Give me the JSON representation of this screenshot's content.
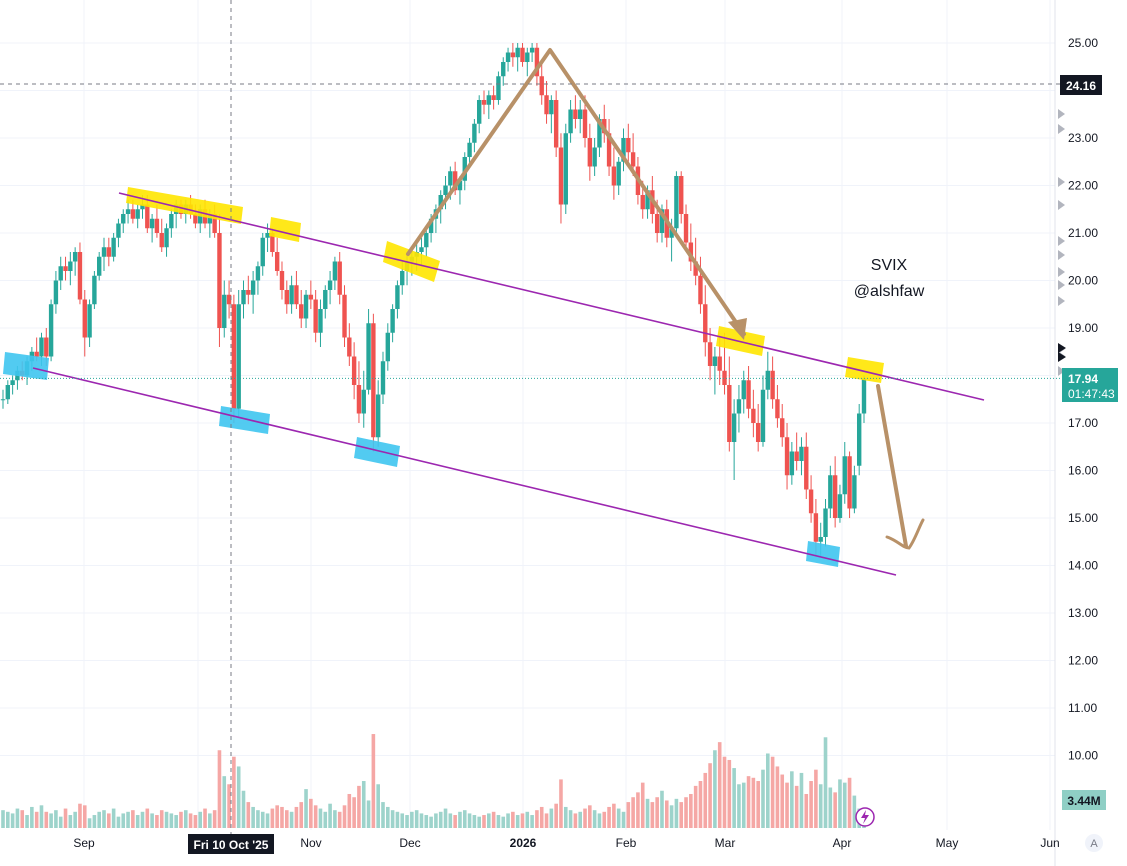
{
  "chart_data": {
    "type": "candlestick",
    "symbol_note": "SVIX",
    "author_note": "@alshfaw",
    "y_ticks": [
      25.0,
      24.0,
      23.0,
      22.0,
      21.0,
      20.0,
      19.0,
      18.0,
      17.0,
      16.0,
      15.0,
      14.0,
      13.0,
      12.0,
      11.0,
      10.0
    ],
    "y_tick_labels": [
      "25.00",
      "24.00",
      "23.00",
      "22.00",
      "21.00",
      "20.00",
      "19.00",
      "18.00",
      "17.00",
      "16.00",
      "15.00",
      "14.00",
      "13.00",
      "12.00",
      "11.00",
      "10.00"
    ],
    "x_labels": [
      "Sep",
      "Oct",
      "Nov",
      "Dec",
      "2026",
      "Feb",
      "Mar",
      "Apr",
      "May",
      "Jun"
    ],
    "crosshair_date_label": "Fri 10 Oct '25",
    "crosshair_price_label": "24.16",
    "last_price_label": "17.94",
    "countdown_label": "01:47:43",
    "volume_label": "3.44M",
    "auto_scale_label": "A",
    "colors": {
      "up": "#26a69a",
      "down": "#ef5350",
      "channel": "#9c27b0",
      "arrow": "#b89168",
      "highlight_yellow": "#ffe600",
      "highlight_blue": "#3fc5f0",
      "last_price": "#26a69a"
    },
    "candles": [
      [
        17.5,
        17.7,
        17.3,
        17.5
      ],
      [
        17.5,
        17.9,
        17.4,
        17.8
      ],
      [
        17.8,
        18.0,
        17.6,
        17.9
      ],
      [
        17.9,
        18.2,
        17.7,
        18.1
      ],
      [
        18.1,
        18.3,
        17.9,
        18.0
      ],
      [
        18.0,
        18.4,
        17.8,
        18.3
      ],
      [
        18.3,
        18.6,
        18.1,
        18.5
      ],
      [
        18.5,
        18.8,
        18.3,
        18.4
      ],
      [
        18.4,
        18.9,
        18.2,
        18.8
      ],
      [
        18.8,
        19.0,
        18.2,
        18.4
      ],
      [
        18.4,
        19.6,
        18.3,
        19.5
      ],
      [
        19.5,
        20.2,
        19.3,
        20.0
      ],
      [
        20.0,
        20.5,
        19.8,
        20.3
      ],
      [
        20.3,
        20.5,
        20.0,
        20.2
      ],
      [
        20.2,
        20.6,
        19.9,
        20.4
      ],
      [
        20.4,
        20.7,
        20.1,
        20.6
      ],
      [
        20.6,
        20.8,
        19.5,
        19.6
      ],
      [
        19.6,
        19.8,
        18.4,
        18.8
      ],
      [
        18.8,
        19.6,
        18.6,
        19.5
      ],
      [
        19.5,
        20.2,
        19.4,
        20.1
      ],
      [
        20.1,
        20.6,
        20.0,
        20.5
      ],
      [
        20.5,
        20.9,
        20.2,
        20.7
      ],
      [
        20.7,
        20.9,
        20.3,
        20.5
      ],
      [
        20.5,
        21.0,
        20.4,
        20.9
      ],
      [
        20.9,
        21.3,
        20.7,
        21.2
      ],
      [
        21.2,
        21.5,
        21.0,
        21.4
      ],
      [
        21.4,
        21.7,
        21.2,
        21.5
      ],
      [
        21.5,
        21.7,
        21.2,
        21.3
      ],
      [
        21.3,
        21.6,
        21.1,
        21.5
      ],
      [
        21.5,
        21.8,
        21.3,
        21.6
      ],
      [
        21.6,
        21.8,
        21.0,
        21.1
      ],
      [
        21.1,
        21.4,
        20.8,
        21.3
      ],
      [
        21.3,
        21.6,
        20.9,
        21.0
      ],
      [
        21.0,
        21.3,
        20.6,
        20.7
      ],
      [
        20.7,
        21.2,
        20.5,
        21.1
      ],
      [
        21.1,
        21.5,
        20.9,
        21.4
      ],
      [
        21.4,
        21.7,
        21.1,
        21.6
      ],
      [
        21.6,
        21.7,
        21.3,
        21.4
      ],
      [
        21.4,
        21.7,
        21.2,
        21.6
      ],
      [
        21.6,
        21.8,
        21.3,
        21.4
      ],
      [
        21.4,
        21.6,
        21.1,
        21.2
      ],
      [
        21.2,
        21.6,
        21.0,
        21.5
      ],
      [
        21.5,
        21.7,
        21.1,
        21.2
      ],
      [
        21.2,
        21.5,
        20.9,
        21.4
      ],
      [
        21.4,
        21.6,
        20.9,
        21.0
      ],
      [
        21.0,
        21.4,
        18.6,
        19.0
      ],
      [
        19.0,
        20.0,
        18.8,
        19.7
      ],
      [
        19.7,
        20.0,
        19.2,
        19.5
      ],
      [
        19.5,
        19.7,
        17.0,
        17.3
      ],
      [
        17.3,
        19.8,
        17.1,
        19.5
      ],
      [
        19.5,
        20.0,
        19.2,
        19.8
      ],
      [
        19.8,
        20.1,
        19.5,
        19.7
      ],
      [
        19.7,
        20.2,
        19.3,
        20.0
      ],
      [
        20.0,
        20.4,
        19.7,
        20.3
      ],
      [
        20.3,
        21.0,
        20.1,
        20.9
      ],
      [
        20.9,
        21.2,
        20.6,
        21.0
      ],
      [
        21.0,
        21.1,
        20.5,
        20.6
      ],
      [
        20.6,
        20.9,
        20.1,
        20.2
      ],
      [
        20.2,
        20.4,
        19.6,
        19.8
      ],
      [
        19.8,
        20.0,
        19.3,
        19.5
      ],
      [
        19.5,
        20.1,
        19.3,
        19.9
      ],
      [
        19.9,
        20.2,
        19.4,
        19.5
      ],
      [
        19.5,
        19.8,
        19.0,
        19.2
      ],
      [
        19.2,
        19.8,
        19.0,
        19.7
      ],
      [
        19.7,
        20.0,
        19.4,
        19.6
      ],
      [
        19.6,
        19.8,
        18.7,
        18.9
      ],
      [
        18.9,
        19.6,
        18.6,
        19.4
      ],
      [
        19.4,
        19.9,
        19.2,
        19.8
      ],
      [
        19.8,
        20.2,
        19.5,
        20.0
      ],
      [
        20.0,
        20.5,
        19.8,
        20.4
      ],
      [
        20.4,
        20.6,
        19.5,
        19.7
      ],
      [
        19.7,
        19.9,
        18.6,
        18.8
      ],
      [
        18.8,
        19.1,
        18.2,
        18.4
      ],
      [
        18.4,
        18.7,
        17.5,
        17.8
      ],
      [
        17.8,
        18.3,
        17.0,
        17.2
      ],
      [
        17.2,
        18.1,
        16.9,
        17.7
      ],
      [
        17.7,
        19.4,
        17.6,
        19.1
      ],
      [
        19.1,
        19.3,
        16.4,
        16.7
      ],
      [
        16.7,
        17.9,
        16.5,
        17.6
      ],
      [
        17.6,
        18.5,
        17.4,
        18.3
      ],
      [
        18.3,
        19.1,
        18.1,
        18.9
      ],
      [
        18.9,
        19.5,
        18.7,
        19.4
      ],
      [
        19.4,
        20.0,
        19.2,
        19.9
      ],
      [
        19.9,
        20.4,
        19.7,
        20.2
      ],
      [
        20.2,
        20.6,
        19.9,
        20.4
      ],
      [
        20.4,
        20.7,
        20.1,
        20.5
      ],
      [
        20.5,
        20.8,
        20.2,
        20.6
      ],
      [
        20.6,
        20.9,
        20.3,
        20.7
      ],
      [
        20.7,
        21.1,
        20.5,
        21.0
      ],
      [
        21.0,
        21.4,
        20.8,
        21.3
      ],
      [
        21.3,
        21.6,
        21.0,
        21.5
      ],
      [
        21.5,
        21.9,
        21.2,
        21.8
      ],
      [
        21.8,
        22.2,
        21.5,
        22.0
      ],
      [
        22.0,
        22.4,
        21.7,
        22.3
      ],
      [
        22.3,
        22.5,
        21.8,
        21.9
      ],
      [
        21.9,
        22.2,
        21.6,
        22.1
      ],
      [
        22.1,
        22.7,
        21.9,
        22.6
      ],
      [
        22.6,
        23.0,
        22.4,
        22.9
      ],
      [
        22.9,
        23.4,
        22.7,
        23.3
      ],
      [
        23.3,
        23.9,
        23.1,
        23.8
      ],
      [
        23.8,
        24.0,
        23.5,
        23.7
      ],
      [
        23.7,
        24.0,
        23.4,
        23.9
      ],
      [
        23.9,
        24.1,
        23.6,
        23.8
      ],
      [
        23.8,
        24.4,
        23.7,
        24.3
      ],
      [
        24.3,
        24.7,
        24.1,
        24.6
      ],
      [
        24.6,
        24.9,
        24.4,
        24.8
      ],
      [
        24.8,
        25.0,
        24.5,
        24.7
      ],
      [
        24.7,
        25.0,
        24.4,
        24.9
      ],
      [
        24.9,
        25.0,
        24.5,
        24.6
      ],
      [
        24.6,
        24.9,
        24.3,
        24.8
      ],
      [
        24.8,
        25.0,
        24.6,
        24.9
      ],
      [
        24.9,
        25.0,
        24.1,
        24.3
      ],
      [
        24.3,
        24.6,
        23.7,
        23.9
      ],
      [
        23.9,
        24.2,
        23.3,
        23.5
      ],
      [
        23.5,
        23.9,
        23.1,
        23.8
      ],
      [
        23.8,
        24.0,
        22.6,
        22.8
      ],
      [
        22.8,
        23.1,
        21.2,
        21.6
      ],
      [
        21.6,
        23.3,
        21.4,
        23.1
      ],
      [
        23.1,
        23.8,
        22.9,
        23.6
      ],
      [
        23.6,
        23.9,
        23.2,
        23.4
      ],
      [
        23.4,
        23.8,
        23.1,
        23.6
      ],
      [
        23.6,
        23.9,
        22.8,
        23.0
      ],
      [
        23.0,
        23.3,
        22.1,
        22.4
      ],
      [
        22.4,
        23.0,
        22.2,
        22.8
      ],
      [
        22.8,
        23.5,
        22.6,
        23.4
      ],
      [
        23.4,
        23.7,
        22.9,
        23.1
      ],
      [
        23.1,
        23.4,
        22.2,
        22.4
      ],
      [
        22.4,
        22.8,
        21.7,
        22.0
      ],
      [
        22.0,
        22.6,
        21.8,
        22.5
      ],
      [
        22.5,
        23.2,
        22.3,
        23.0
      ],
      [
        23.0,
        23.3,
        22.5,
        22.7
      ],
      [
        22.7,
        23.1,
        22.2,
        22.4
      ],
      [
        22.4,
        22.6,
        21.6,
        21.8
      ],
      [
        21.8,
        22.1,
        21.3,
        21.5
      ],
      [
        21.5,
        22.0,
        21.3,
        21.9
      ],
      [
        21.9,
        22.2,
        21.2,
        21.4
      ],
      [
        21.4,
        21.7,
        20.8,
        21.0
      ],
      [
        21.0,
        21.6,
        20.8,
        21.5
      ],
      [
        21.5,
        21.7,
        20.7,
        20.9
      ],
      [
        20.9,
        21.3,
        20.4,
        21.1
      ],
      [
        21.1,
        22.3,
        21.0,
        22.2
      ],
      [
        22.2,
        22.3,
        21.2,
        21.4
      ],
      [
        21.4,
        21.6,
        20.6,
        20.8
      ],
      [
        20.8,
        21.2,
        20.2,
        20.4
      ],
      [
        20.4,
        20.9,
        19.9,
        20.1
      ],
      [
        20.1,
        20.5,
        19.3,
        19.5
      ],
      [
        19.5,
        19.9,
        18.4,
        18.7
      ],
      [
        18.7,
        19.0,
        17.9,
        18.2
      ],
      [
        18.2,
        18.6,
        17.6,
        18.4
      ],
      [
        18.4,
        18.8,
        17.8,
        18.1
      ],
      [
        18.1,
        18.9,
        17.6,
        17.8
      ],
      [
        17.8,
        18.4,
        16.4,
        16.6
      ],
      [
        16.6,
        17.5,
        15.8,
        17.2
      ],
      [
        17.2,
        17.8,
        16.8,
        17.5
      ],
      [
        17.5,
        18.1,
        17.2,
        17.9
      ],
      [
        17.9,
        18.2,
        17.1,
        17.3
      ],
      [
        17.3,
        17.7,
        16.7,
        17.0
      ],
      [
        17.0,
        17.4,
        16.4,
        16.6
      ],
      [
        16.6,
        18.0,
        16.5,
        17.7
      ],
      [
        17.7,
        18.5,
        17.5,
        18.1
      ],
      [
        18.1,
        18.4,
        17.3,
        17.5
      ],
      [
        17.5,
        17.8,
        16.9,
        17.1
      ],
      [
        17.1,
        17.4,
        16.5,
        16.7
      ],
      [
        16.7,
        17.0,
        15.6,
        15.9
      ],
      [
        15.9,
        16.6,
        15.7,
        16.4
      ],
      [
        16.4,
        16.8,
        16.0,
        16.2
      ],
      [
        16.2,
        16.7,
        15.9,
        16.5
      ],
      [
        16.5,
        16.8,
        15.4,
        15.6
      ],
      [
        15.6,
        15.9,
        14.9,
        15.1
      ],
      [
        15.1,
        15.4,
        14.2,
        14.5
      ],
      [
        14.5,
        14.9,
        14.2,
        14.6
      ],
      [
        14.6,
        15.4,
        14.4,
        15.2
      ],
      [
        15.2,
        16.1,
        15.0,
        15.9
      ],
      [
        15.9,
        16.3,
        14.8,
        15.0
      ],
      [
        15.0,
        15.7,
        14.9,
        15.5
      ],
      [
        15.5,
        16.6,
        15.3,
        16.3
      ],
      [
        16.3,
        16.4,
        15.0,
        15.2
      ],
      [
        15.2,
        16.1,
        15.1,
        15.9
      ],
      [
        16.1,
        17.4,
        15.9,
        17.2
      ],
      [
        17.2,
        18.0,
        17.0,
        17.94
      ]
    ],
    "volume_millions": [
      4.1,
      4.0,
      3.9,
      4.2,
      4.1,
      3.8,
      4.3,
      4.0,
      4.4,
      4.0,
      3.9,
      4.1,
      3.7,
      4.2,
      3.8,
      4.0,
      4.5,
      4.4,
      3.6,
      3.8,
      4.0,
      4.1,
      3.9,
      4.2,
      3.7,
      3.9,
      4.0,
      4.1,
      3.8,
      4.0,
      4.2,
      3.9,
      3.8,
      4.1,
      4.0,
      3.9,
      3.8,
      4.0,
      4.1,
      3.9,
      3.8,
      4.0,
      4.2,
      3.9,
      4.1,
      7.8,
      6.2,
      5.7,
      7.4,
      6.8,
      5.3,
      4.6,
      4.3,
      4.1,
      4.0,
      3.9,
      4.2,
      4.4,
      4.3,
      4.1,
      4.0,
      4.3,
      4.6,
      5.4,
      4.8,
      4.4,
      4.2,
      4.0,
      4.5,
      4.1,
      4.0,
      4.4,
      5.1,
      4.9,
      5.6,
      5.9,
      4.7,
      8.8,
      5.7,
      4.6,
      4.3,
      4.1,
      4.0,
      3.9,
      3.8,
      4.0,
      4.1,
      3.9,
      3.8,
      3.7,
      3.9,
      4.0,
      4.2,
      3.9,
      3.8,
      4.0,
      4.1,
      3.9,
      3.8,
      3.7,
      3.8,
      3.9,
      4.0,
      3.8,
      3.7,
      3.9,
      4.0,
      3.8,
      3.9,
      4.0,
      3.8,
      4.1,
      4.3,
      3.9,
      4.2,
      4.5,
      6.0,
      4.3,
      4.1,
      3.9,
      4.0,
      4.2,
      4.4,
      4.1,
      3.9,
      4.0,
      4.3,
      4.5,
      4.2,
      4.0,
      4.6,
      4.9,
      5.2,
      5.8,
      4.8,
      4.6,
      4.9,
      5.3,
      4.7,
      4.4,
      4.8,
      4.6,
      4.9,
      5.1,
      5.6,
      5.9,
      6.4,
      7.0,
      7.8,
      8.3,
      7.4,
      7.2,
      6.7,
      5.7,
      5.8,
      6.2,
      6.1,
      5.9,
      6.6,
      7.6,
      7.4,
      6.8,
      6.3,
      5.8,
      6.5,
      5.6,
      6.4,
      5.1,
      5.9,
      6.6,
      5.7,
      8.6,
      5.5,
      5.2,
      6.0,
      5.8,
      6.1,
      5.0,
      4.2,
      3.9
    ]
  }
}
